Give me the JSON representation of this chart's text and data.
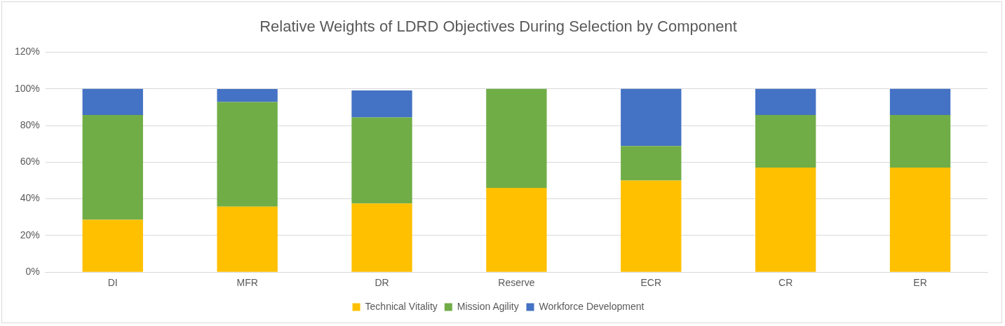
{
  "chart_data": {
    "type": "bar",
    "title": "Relative Weights of LDRD Objectives During Selection by Component",
    "categories": [
      "DI",
      "MFR",
      "DR",
      "Reserve",
      "ECR",
      "CR",
      "ER"
    ],
    "stacked": true,
    "series": [
      {
        "name": "Technical Vitality",
        "color": "#ffc000",
        "values": [
          28.6,
          35.7,
          37.5,
          46,
          50,
          57.1,
          57.1
        ]
      },
      {
        "name": "Mission Agility",
        "color": "#70ad47",
        "values": [
          57.1,
          57.1,
          46.9,
          54,
          18.8,
          28.6,
          28.6
        ]
      },
      {
        "name": "Workforce Development",
        "color": "#4472c4",
        "values": [
          14.3,
          7.1,
          14.7,
          0,
          31.2,
          14.3,
          14.3
        ]
      }
    ],
    "ylim": [
      0,
      120
    ],
    "yticks": [
      {
        "value": 0,
        "label": "0%"
      },
      {
        "value": 20,
        "label": "20%"
      },
      {
        "value": 40,
        "label": "40%"
      },
      {
        "value": 60,
        "label": "60%"
      },
      {
        "value": 80,
        "label": "80%"
      },
      {
        "value": 100,
        "label": "100%"
      },
      {
        "value": 120,
        "label": "120%"
      }
    ],
    "grid": "y",
    "legend": "bottom"
  }
}
